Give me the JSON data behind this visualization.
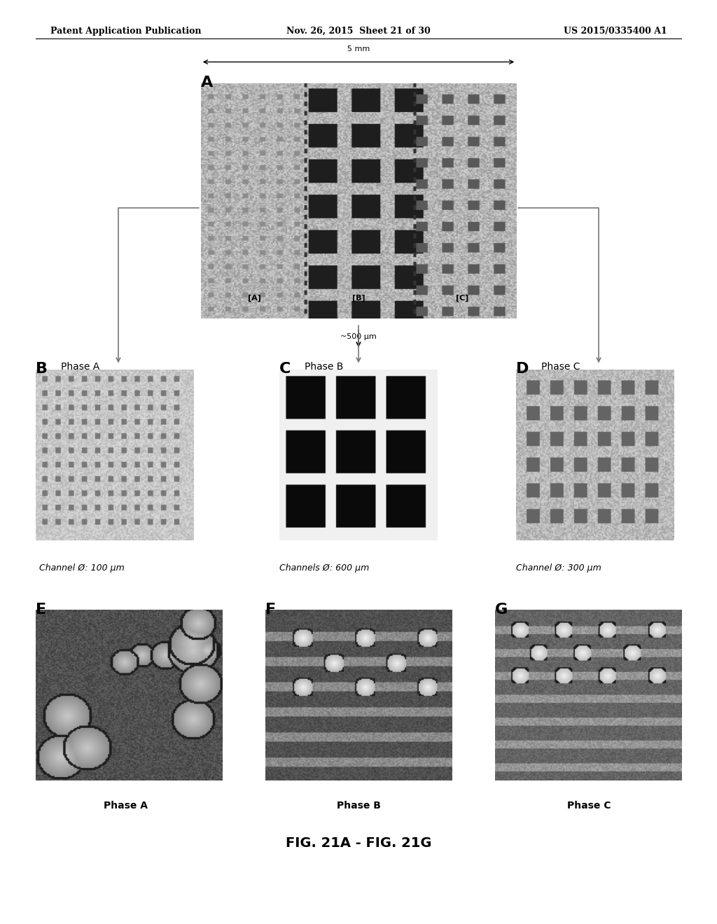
{
  "header_left": "Patent Application Publication",
  "header_mid": "Nov. 26, 2015  Sheet 21 of 30",
  "header_right": "US 2015/0335400 A1",
  "figure_caption": "FIG. 21A - FIG. 21G",
  "panel_A_label": "A",
  "panel_A_scale1": "5 mm",
  "panel_A_scale2": "~500 μm",
  "panel_A_sublabels": [
    "[A]",
    "[B]",
    "[C]"
  ],
  "panel_B_label": "B",
  "panel_B_sublabel": "Phase A",
  "panel_B_caption": "Channel Ø: 100 μm",
  "panel_C_label": "C",
  "panel_C_sublabel": "Phase B",
  "panel_C_caption": "Channels Ø: 600 μm",
  "panel_D_label": "D",
  "panel_D_sublabel": "Phase C",
  "panel_D_caption": "Channel Ø: 300 μm",
  "panel_E_label": "E",
  "panel_E_sublabel": "Phase A",
  "panel_F_label": "F",
  "panel_F_sublabel": "Phase B",
  "panel_G_label": "G",
  "panel_G_sublabel": "Phase C",
  "bg_color": "#ffffff",
  "text_color": "#000000",
  "header_fontsize": 9,
  "label_fontsize": 14,
  "caption_fontsize": 9,
  "sublabel_fontsize": 9,
  "fig_caption_fontsize": 14
}
